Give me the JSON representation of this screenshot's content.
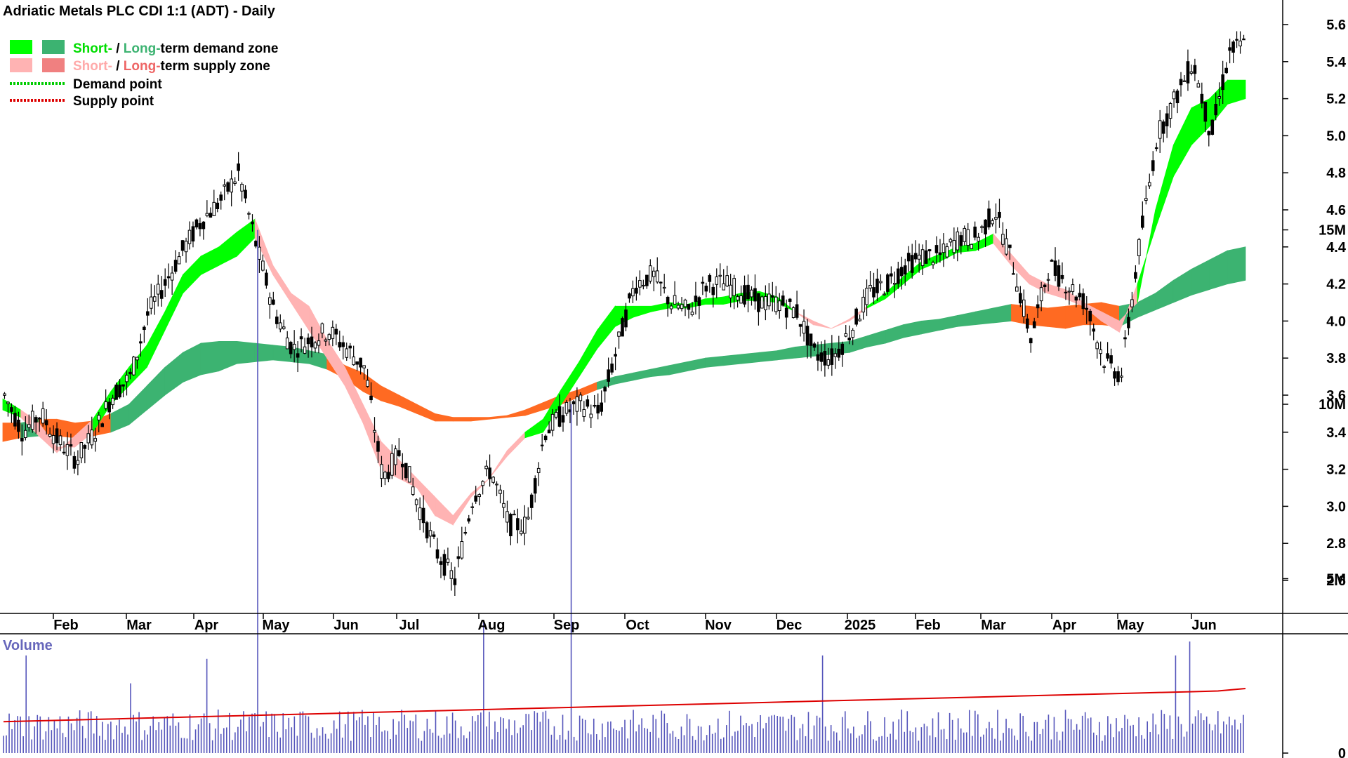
{
  "title": "Adriatic Metals PLC CDI 1:1 (ADT) - Daily",
  "legend": {
    "demand_zone": {
      "short": "Short-",
      "sep": " / ",
      "long": "Long-",
      "rest": "term demand zone"
    },
    "supply_zone": {
      "short": "Short-",
      "sep": " / ",
      "long": "Long-",
      "rest": "term supply zone"
    },
    "demand_point": "Demand point",
    "supply_point": "Supply point"
  },
  "colors": {
    "short_demand": "#00ff00",
    "long_demand": "#3cb371",
    "short_supply": "#ffb3b3",
    "long_supply": "#f08080",
    "overlap_supply": "#ff6a22",
    "demand_point": "#00cc00",
    "supply_point": "#dd0000",
    "candle": "#000000",
    "volume_bar": "#5555bb",
    "volume_avg": "#dd0000",
    "volume_label": "#6666bb"
  },
  "chart_data": {
    "type": "candlestick",
    "price_axis": {
      "ticks": [
        "2.6",
        "2.8",
        "3.0",
        "3.2",
        "3.4",
        "3.6",
        "3.8",
        "4.0",
        "4.2",
        "4.4",
        "4.6",
        "4.8",
        "5.0",
        "5.2",
        "5.4",
        "5.6"
      ],
      "range": [
        2.4,
        5.68
      ]
    },
    "time_axis": {
      "labels": [
        "Feb",
        "Mar",
        "Apr",
        "May",
        "Jun",
        "Jul",
        "Aug",
        "Sep",
        "Oct",
        "Nov",
        "Dec",
        "2025",
        "Feb",
        "Mar",
        "Apr",
        "May",
        "Jun"
      ]
    },
    "volume_axis": {
      "label": "Volume",
      "ticks": [
        "0",
        "5M",
        "10M",
        "15M"
      ],
      "range": [
        0,
        16.2
      ]
    },
    "price_anchors": [
      [
        3.6,
        3.4
      ],
      [
        3.4,
        3.25
      ],
      [
        3.5,
        3.14
      ],
      [
        3.35,
        3.09
      ],
      [
        3.25,
        3.2
      ],
      [
        3.4,
        3.33
      ],
      [
        3.6,
        3.34
      ],
      [
        3.7,
        3.48
      ],
      [
        4.05,
        3.87
      ],
      [
        4.22,
        4.08
      ],
      [
        4.4,
        4.28
      ],
      [
        4.55,
        4.4
      ],
      [
        4.65,
        4.7
      ],
      [
        4.8,
        4.85
      ],
      [
        4.4,
        4.65
      ],
      [
        4.05,
        4.3
      ],
      [
        3.85,
        3.97
      ],
      [
        3.9,
        3.9
      ],
      [
        3.95,
        3.92
      ],
      [
        3.85,
        3.86
      ],
      [
        3.75,
        3.72
      ],
      [
        3.15,
        3.45
      ],
      [
        3.3,
        3.13
      ],
      [
        3.0,
        3.05
      ],
      [
        2.75,
        2.62
      ],
      [
        2.6,
        2.75
      ],
      [
        3.05,
        3.0
      ],
      [
        3.2,
        3.15
      ],
      [
        2.9,
        2.93
      ],
      [
        2.9,
        2.68
      ],
      [
        3.4,
        3.0
      ],
      [
        3.5,
        3.3
      ],
      [
        3.55,
        3.45
      ],
      [
        3.5,
        3.5
      ],
      [
        3.85,
        3.65
      ],
      [
        4.2,
        4.05
      ],
      [
        4.25,
        4.3
      ],
      [
        4.1,
        4.15
      ],
      [
        4.05,
        4.05
      ],
      [
        4.2,
        4.15
      ],
      [
        4.2,
        4.15
      ],
      [
        4.15,
        4.18
      ],
      [
        4.1,
        4.13
      ],
      [
        4.1,
        4.18
      ],
      [
        4.05,
        3.95
      ],
      [
        3.82,
        3.85
      ],
      [
        3.8,
        3.75
      ],
      [
        3.95,
        3.95
      ],
      [
        4.15,
        4.2
      ],
      [
        4.2,
        4.18
      ],
      [
        4.3,
        4.28
      ],
      [
        4.35,
        4.32
      ],
      [
        4.35,
        4.4
      ],
      [
        4.45,
        4.45
      ],
      [
        4.45,
        4.55
      ],
      [
        4.6,
        4.58
      ],
      [
        4.3,
        4.15
      ],
      [
        3.9,
        3.85
      ],
      [
        4.3,
        4.2
      ],
      [
        4.2,
        4.25
      ],
      [
        4.1,
        4.0
      ],
      [
        3.8,
        3.8
      ],
      [
        3.7,
        3.7
      ],
      [
        4.4,
        4.8
      ],
      [
        5.0,
        5.15
      ],
      [
        5.2,
        5.3
      ],
      [
        5.4,
        5.45
      ],
      [
        5.0,
        4.9
      ],
      [
        5.45,
        5.5
      ],
      [
        5.5,
        5.5
      ]
    ],
    "ma_short": [
      [
        3.58,
        3.52
      ],
      [
        3.52,
        3.48
      ],
      [
        3.45,
        3.38
      ],
      [
        3.32,
        3.29
      ],
      [
        3.32,
        3.38
      ],
      [
        3.4,
        3.47
      ],
      [
        3.55,
        3.62
      ],
      [
        3.65,
        3.75
      ],
      [
        3.75,
        3.87
      ],
      [
        3.95,
        4.05
      ],
      [
        4.15,
        4.25
      ],
      [
        4.25,
        4.35
      ],
      [
        4.3,
        4.4
      ],
      [
        4.35,
        4.48
      ],
      [
        4.45,
        4.55
      ],
      [
        4.25,
        4.3
      ],
      [
        4.1,
        4.15
      ],
      [
        3.95,
        4.08
      ],
      [
        3.8,
        3.9
      ],
      [
        3.65,
        3.75
      ],
      [
        3.45,
        3.55
      ],
      [
        3.2,
        3.35
      ],
      [
        3.15,
        3.25
      ],
      [
        3.1,
        3.15
      ],
      [
        2.95,
        3.05
      ],
      [
        2.9,
        2.95
      ],
      [
        3.05,
        3.07
      ],
      [
        3.15,
        3.15
      ],
      [
        3.27,
        3.3
      ],
      [
        3.37,
        3.4
      ],
      [
        3.4,
        3.47
      ],
      [
        3.55,
        3.63
      ],
      [
        3.7,
        3.78
      ],
      [
        3.85,
        3.95
      ],
      [
        3.97,
        4.08
      ],
      [
        4.02,
        4.08
      ],
      [
        4.05,
        4.08
      ],
      [
        4.07,
        4.1
      ],
      [
        4.07,
        4.09
      ],
      [
        4.09,
        4.12
      ],
      [
        4.09,
        4.13
      ],
      [
        4.11,
        4.15
      ],
      [
        4.11,
        4.16
      ],
      [
        4.1,
        4.13
      ],
      [
        4.05,
        4.05
      ],
      [
        4.0,
        3.98
      ],
      [
        3.96,
        3.96
      ],
      [
        4.0,
        4.01
      ],
      [
        4.07,
        4.08
      ],
      [
        4.12,
        4.15
      ],
      [
        4.2,
        4.24
      ],
      [
        4.28,
        4.32
      ],
      [
        4.32,
        4.36
      ],
      [
        4.37,
        4.4
      ],
      [
        4.38,
        4.42
      ],
      [
        4.42,
        4.47
      ],
      [
        4.3,
        4.36
      ],
      [
        4.2,
        4.25
      ],
      [
        4.15,
        4.2
      ],
      [
        4.12,
        4.17
      ],
      [
        4.08,
        4.1
      ],
      [
        4.0,
        4.05
      ],
      [
        3.94,
        4.0
      ],
      [
        4.2,
        4.1
      ],
      [
        4.5,
        4.6
      ],
      [
        4.78,
        4.95
      ],
      [
        4.95,
        5.15
      ],
      [
        5.05,
        5.2
      ],
      [
        5.17,
        5.3
      ],
      [
        5.2,
        5.3
      ]
    ],
    "ma_long": [
      [
        3.45,
        3.35
      ],
      [
        3.45,
        3.37
      ],
      [
        3.47,
        3.38
      ],
      [
        3.47,
        3.38
      ],
      [
        3.45,
        3.37
      ],
      [
        3.46,
        3.38
      ],
      [
        3.5,
        3.4
      ],
      [
        3.55,
        3.44
      ],
      [
        3.65,
        3.52
      ],
      [
        3.75,
        3.6
      ],
      [
        3.83,
        3.67
      ],
      [
        3.88,
        3.71
      ],
      [
        3.89,
        3.73
      ],
      [
        3.89,
        3.77
      ],
      [
        3.88,
        3.78
      ],
      [
        3.87,
        3.79
      ],
      [
        3.86,
        3.78
      ],
      [
        3.84,
        3.77
      ],
      [
        3.82,
        3.74
      ],
      [
        3.76,
        3.69
      ],
      [
        3.72,
        3.62
      ],
      [
        3.65,
        3.57
      ],
      [
        3.6,
        3.54
      ],
      [
        3.55,
        3.5
      ],
      [
        3.5,
        3.46
      ],
      [
        3.48,
        3.46
      ],
      [
        3.48,
        3.46
      ],
      [
        3.48,
        3.47
      ],
      [
        3.49,
        3.48
      ],
      [
        3.52,
        3.49
      ],
      [
        3.56,
        3.52
      ],
      [
        3.6,
        3.55
      ],
      [
        3.63,
        3.59
      ],
      [
        3.67,
        3.63
      ],
      [
        3.7,
        3.66
      ],
      [
        3.72,
        3.68
      ],
      [
        3.74,
        3.7
      ],
      [
        3.76,
        3.71
      ],
      [
        3.78,
        3.73
      ],
      [
        3.8,
        3.75
      ],
      [
        3.81,
        3.76
      ],
      [
        3.82,
        3.77
      ],
      [
        3.83,
        3.78
      ],
      [
        3.84,
        3.79
      ],
      [
        3.86,
        3.8
      ],
      [
        3.87,
        3.81
      ],
      [
        3.88,
        3.82
      ],
      [
        3.89,
        3.83
      ],
      [
        3.92,
        3.86
      ],
      [
        3.95,
        3.88
      ],
      [
        3.98,
        3.91
      ],
      [
        4.0,
        3.93
      ],
      [
        4.01,
        3.95
      ],
      [
        4.03,
        3.97
      ],
      [
        4.05,
        3.98
      ],
      [
        4.07,
        3.99
      ],
      [
        4.09,
        4.0
      ],
      [
        4.08,
        3.98
      ],
      [
        4.07,
        3.97
      ],
      [
        4.08,
        3.96
      ],
      [
        4.09,
        3.98
      ],
      [
        4.1,
        3.98
      ],
      [
        4.08,
        3.97
      ],
      [
        4.1,
        4.02
      ],
      [
        4.15,
        4.06
      ],
      [
        4.22,
        4.1
      ],
      [
        4.28,
        4.14
      ],
      [
        4.33,
        4.17
      ],
      [
        4.38,
        4.2
      ],
      [
        4.4,
        4.22
      ]
    ],
    "volume_anchors": [
      1.5,
      0.8,
      0.8,
      0.9,
      0.9,
      0.9,
      0.7,
      0.9,
      0.8,
      0.9,
      1.0,
      1.1,
      1.1,
      1.1,
      15.0,
      1.3,
      1.0,
      1.0,
      1.1,
      1.1,
      1.0,
      1.8,
      1.0,
      10.0,
      1.2,
      1.0,
      1.2,
      1.1,
      1.1,
      1.0,
      1.0,
      1.1,
      1.3,
      1.1,
      1.0,
      1.2,
      1.2,
      1.1,
      1.6,
      2.0,
      1.5,
      1.3,
      1.5,
      1.2,
      1.2,
      1.1,
      1.0,
      1.2,
      1.3,
      1.5,
      1.8,
      2.0,
      2.2,
      2.5,
      3.0,
      3.5,
      2.6,
      2.3,
      2.0,
      2.0,
      1.8,
      1.5,
      1.8,
      2.2,
      2.5,
      2.8,
      3.0,
      3.5,
      4.0,
      4.5
    ],
    "volume_spikes": [
      [
        8,
        2.8
      ],
      [
        45,
        2.0
      ],
      [
        72,
        2.7
      ],
      [
        90,
        15.0
      ],
      [
        170,
        3.8
      ],
      [
        201,
        10.0
      ],
      [
        290,
        2.8
      ],
      [
        415,
        2.8
      ],
      [
        420,
        3.2
      ],
      [
        467,
        2.3
      ],
      [
        500,
        2.0
      ],
      [
        511,
        3.8
      ],
      [
        535,
        3.0
      ],
      [
        548,
        1.8
      ],
      [
        566,
        2.8
      ],
      [
        598,
        3.1
      ],
      [
        611,
        1.9
      ],
      [
        618,
        2.0
      ],
      [
        629,
        4.3
      ],
      [
        632,
        4.5
      ],
      [
        650,
        3.0
      ],
      [
        664,
        2.5
      ],
      [
        672,
        2.0
      ],
      [
        685,
        3.8
      ],
      [
        703,
        2.4
      ],
      [
        718,
        2.8
      ],
      [
        739,
        5.5
      ],
      [
        747,
        4.5
      ],
      [
        754,
        3.0
      ],
      [
        765,
        5.3
      ],
      [
        775,
        3.5
      ],
      [
        786,
        2.3
      ],
      [
        795,
        3.4
      ],
      [
        805,
        3.9
      ],
      [
        815,
        3.3
      ],
      [
        821,
        2.3
      ],
      [
        838,
        3.1
      ],
      [
        848,
        3.0
      ],
      [
        862,
        3.4
      ],
      [
        868,
        5.2
      ],
      [
        872,
        3.5
      ],
      [
        878,
        4.8
      ]
    ]
  }
}
